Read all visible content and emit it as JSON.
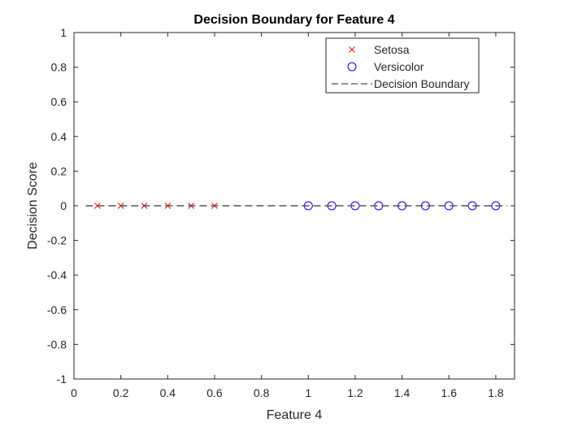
{
  "chart_data": {
    "type": "scatter",
    "title": "Decision Boundary for Feature 4",
    "xlabel": "Feature 4",
    "ylabel": "Decision Score",
    "xlim": [
      0,
      1.88
    ],
    "ylim": [
      -1,
      1
    ],
    "xticks": [
      0,
      0.2,
      0.4,
      0.6,
      0.8,
      1,
      1.2,
      1.4,
      1.6,
      1.8
    ],
    "xtick_labels": [
      "0",
      "0.2",
      "0.4",
      "0.6",
      "0.8",
      "1",
      "1.2",
      "1.4",
      "1.6",
      "1.8"
    ],
    "yticks": [
      1,
      0.8,
      0.6,
      0.4,
      0.2,
      0,
      -0.2,
      -0.4,
      -0.6,
      -0.8,
      -1
    ],
    "ytick_labels": [
      "1",
      "0.8",
      "0.6",
      "0.4",
      "0.2",
      "0",
      "-0.2",
      "-0.4",
      "-0.6",
      "-0.8",
      "-1"
    ],
    "grid": false,
    "legend_position": "top-right",
    "series": [
      {
        "name": "Setosa",
        "marker": "x",
        "color": "#ff0000",
        "x": [
          0.1,
          0.2,
          0.3,
          0.4,
          0.5,
          0.6
        ],
        "y": [
          0,
          0,
          0,
          0,
          0,
          0
        ]
      },
      {
        "name": "Versicolor",
        "marker": "o",
        "color": "#0000ff",
        "x": [
          1.0,
          1.1,
          1.2,
          1.3,
          1.4,
          1.5,
          1.6,
          1.7,
          1.8
        ],
        "y": [
          0,
          0,
          0,
          0,
          0,
          0,
          0,
          0,
          0
        ]
      },
      {
        "name": "Decision Boundary",
        "marker": "dashed-line",
        "color": "#555555",
        "x": [
          0.05,
          1.85
        ],
        "y": [
          0,
          0
        ]
      }
    ]
  }
}
